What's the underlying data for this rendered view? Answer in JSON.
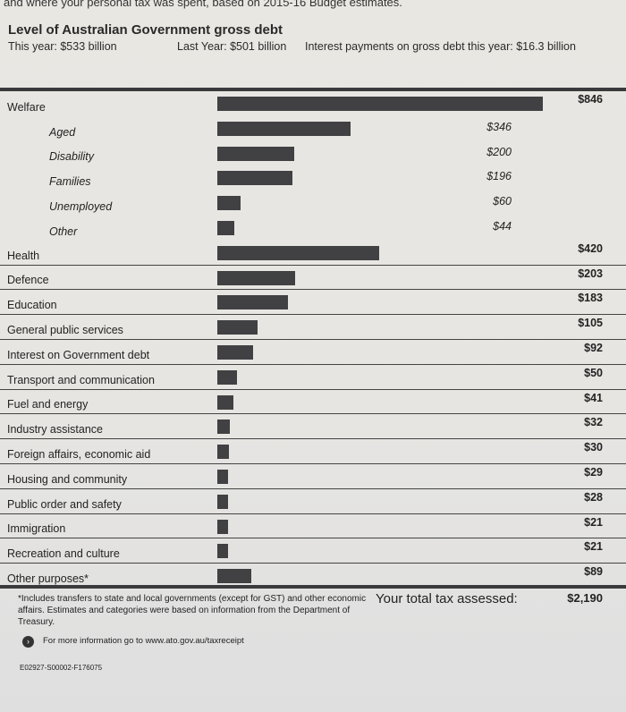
{
  "intro_text": "and where your personal tax was spent, based on 2015-16 Budget estimates.",
  "debt": {
    "title": "Level of Australian Government gross debt",
    "this_year": "This year: $533 billion",
    "last_year": "Last Year: $501 billion",
    "interest": "Interest payments on gross debt this year: $16.3 billion"
  },
  "chart_data": {
    "type": "bar",
    "orientation": "horizontal",
    "categories": [
      "Welfare",
      "Aged",
      "Disability",
      "Families",
      "Unemployed",
      "Other",
      "Health",
      "Defence",
      "Education",
      "General public services",
      "Interest on Government debt",
      "Transport and communication",
      "Fuel and energy",
      "Industry assistance",
      "Foreign affairs, economic aid",
      "Housing and community",
      "Public order and safety",
      "Immigration",
      "Recreation and culture",
      "Other purposes*"
    ],
    "values": [
      846,
      346,
      200,
      196,
      60,
      44,
      420,
      203,
      183,
      105,
      92,
      50,
      41,
      32,
      30,
      29,
      28,
      21,
      21,
      89
    ],
    "value_labels": [
      "$846",
      "$346",
      "$200",
      "$196",
      "$60",
      "$44",
      "$420",
      "$203",
      "$183",
      "$105",
      "$92",
      "$50",
      "$41",
      "$32",
      "$30",
      "$29",
      "$28",
      "$21",
      "$21",
      "$89"
    ],
    "subcategory": [
      false,
      true,
      true,
      true,
      true,
      true,
      false,
      false,
      false,
      false,
      false,
      false,
      false,
      false,
      false,
      false,
      false,
      false,
      false,
      false
    ],
    "bar_color": "#414143"
  },
  "footnote": "*Includes transfers to state and local governments (except for GST) and other economic affairs. Estimates and categories were based on information from the Department of Treasury.",
  "total": {
    "label": "Your total tax assessed:",
    "value": "$2,190"
  },
  "more_info": "For more information go to www.ato.gov.au/taxreceipt",
  "code": "E02927-S00002-F176075"
}
